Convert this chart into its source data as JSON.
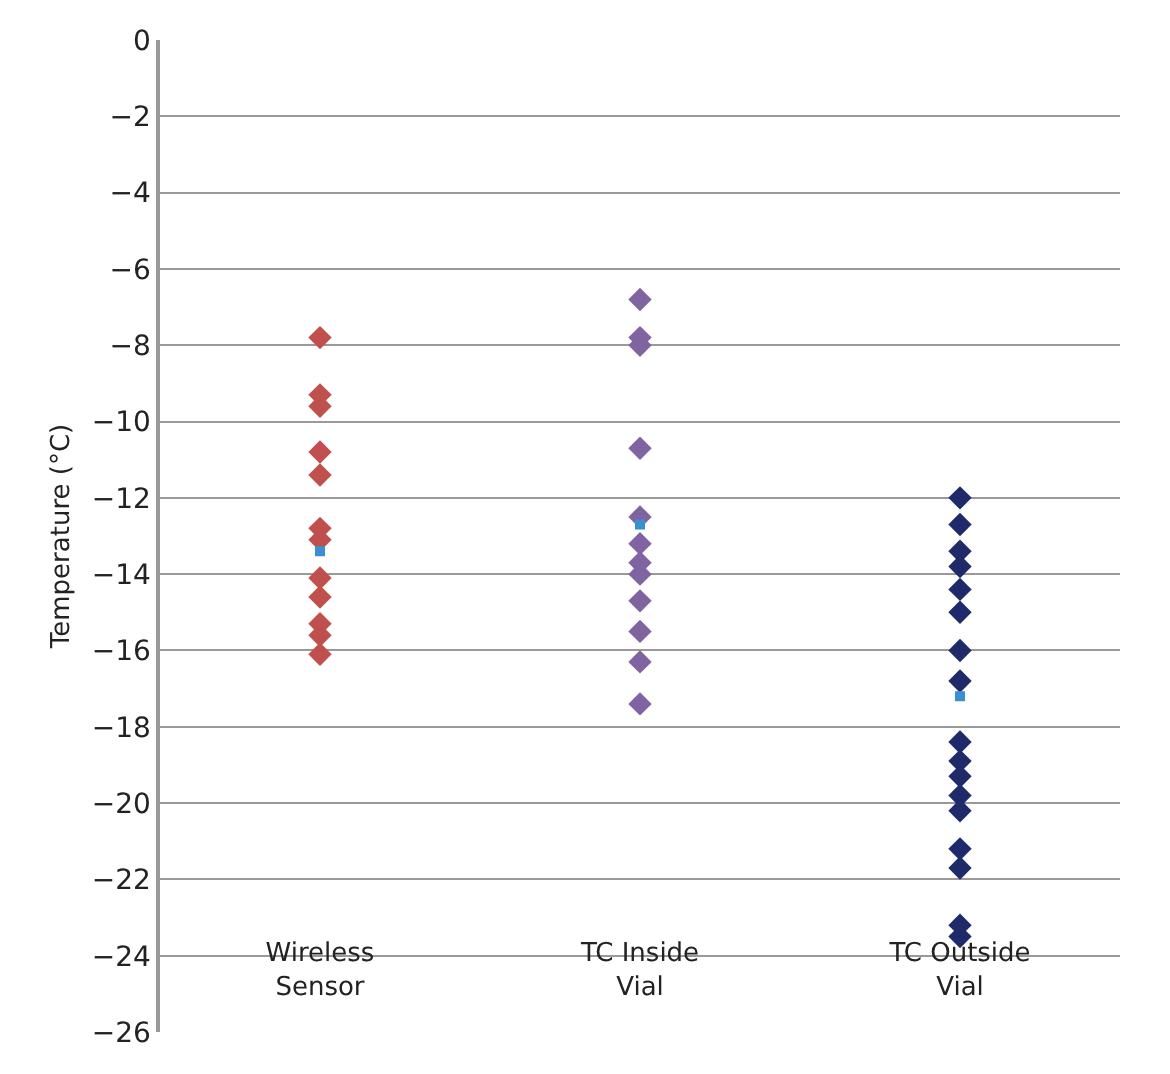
{
  "chart_data": {
    "type": "scatter",
    "ylabel": "Temperature (°C)",
    "categories": [
      "Wireless Sensor",
      "TC Inside Vial",
      "TC Outside Vial"
    ],
    "ylim": [
      -26,
      0
    ],
    "yticks": [
      0,
      -2,
      -4,
      -6,
      -8,
      -10,
      -12,
      -14,
      -16,
      -18,
      -20,
      -22,
      -24,
      -26
    ],
    "grid": "y",
    "marker": "diamond",
    "series": [
      {
        "color": "#c0504d",
        "x": [
          "Wireless Sensor",
          "Wireless Sensor",
          "Wireless Sensor",
          "Wireless Sensor",
          "Wireless Sensor",
          "Wireless Sensor",
          "Wireless Sensor",
          "Wireless Sensor",
          "Wireless Sensor",
          "Wireless Sensor",
          "Wireless Sensor",
          "Wireless Sensor"
        ],
        "values": [
          -7.8,
          -9.3,
          -9.6,
          -10.8,
          -11.4,
          -12.8,
          -13.1,
          -14.1,
          -14.6,
          -15.3,
          -15.6,
          -16.1
        ]
      },
      {
        "color": "#8064a2",
        "x": [
          "TC Inside Vial",
          "TC Inside Vial",
          "TC Inside Vial",
          "TC Inside Vial",
          "TC Inside Vial",
          "TC Inside Vial",
          "TC Inside Vial",
          "TC Inside Vial",
          "TC Inside Vial",
          "TC Inside Vial",
          "TC Inside Vial",
          "TC Inside Vial"
        ],
        "values": [
          -6.8,
          -7.8,
          -8.0,
          -10.7,
          -12.5,
          -13.2,
          -13.7,
          -14.0,
          -14.7,
          -15.5,
          -16.3,
          -17.4
        ]
      },
      {
        "color": "#1f2a6b",
        "x": [
          "TC Outside Vial",
          "TC Outside Vial",
          "TC Outside Vial",
          "TC Outside Vial",
          "TC Outside Vial",
          "TC Outside Vial",
          "TC Outside Vial",
          "TC Outside Vial",
          "TC Outside Vial",
          "TC Outside Vial",
          "TC Outside Vial",
          "TC Outside Vial",
          "TC Outside Vial",
          "TC Outside Vial",
          "TC Outside Vial",
          "TC Outside Vial",
          "TC Outside Vial"
        ],
        "values": [
          -12.0,
          -12.7,
          -13.4,
          -13.8,
          -14.4,
          -15.0,
          -16.0,
          -16.8,
          -18.4,
          -18.9,
          -19.3,
          -19.8,
          -20.2,
          -21.2,
          -21.7,
          -23.2,
          -23.5
        ]
      },
      {
        "color": "#3a8fd0",
        "marker": "square",
        "x": [
          "Wireless Sensor",
          "TC Inside Vial",
          "TC Outside Vial"
        ],
        "values": [
          -13.4,
          -12.7,
          -17.2
        ]
      }
    ]
  }
}
